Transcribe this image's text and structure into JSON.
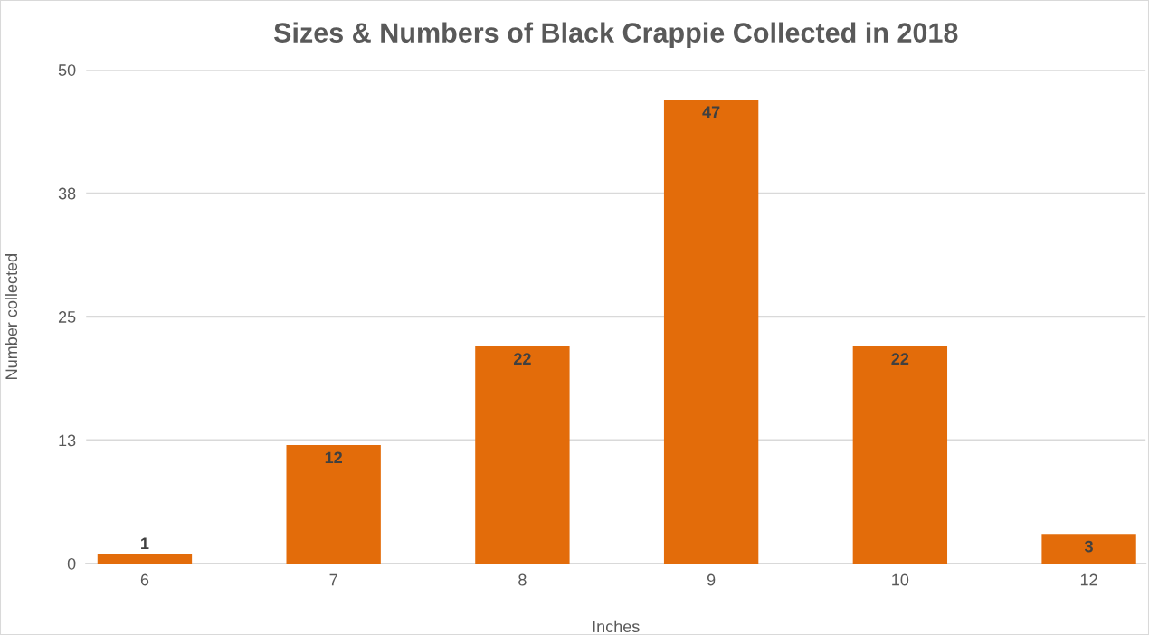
{
  "chart_data": {
    "type": "bar",
    "title": "Sizes & Numbers of Black Crappie Collected in 2018",
    "xlabel": "Inches",
    "ylabel": "Number collected",
    "categories": [
      "6",
      "7",
      "8",
      "9",
      "10",
      "12"
    ],
    "values": [
      1,
      12,
      22,
      47,
      22,
      3
    ],
    "color": "#e36c0a",
    "ylim": [
      0,
      50
    ],
    "yticks": [
      0,
      {
        "value": 12.5,
        "label": "13"
      },
      25,
      {
        "value": 37.5,
        "label": "38"
      },
      50
    ],
    "grid": "y",
    "data_labels": true,
    "legend": false
  }
}
